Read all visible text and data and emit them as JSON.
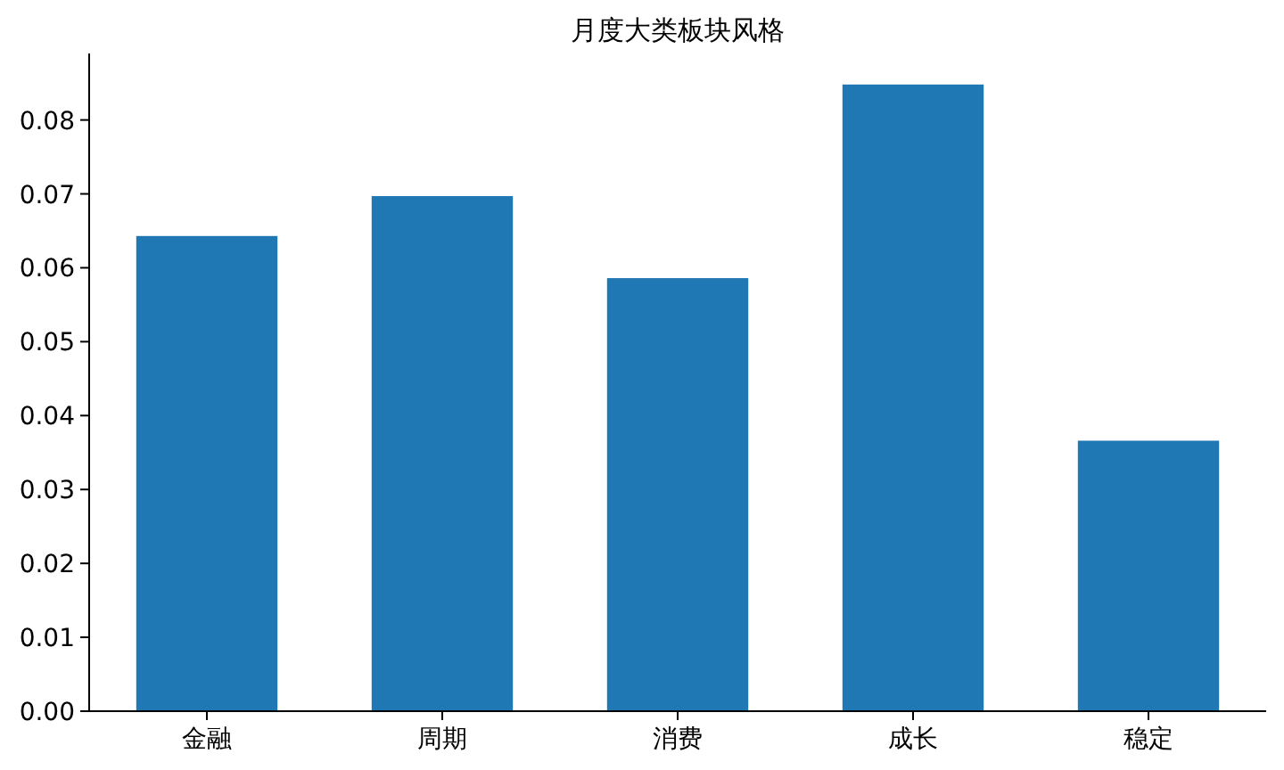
{
  "chart_data": {
    "type": "bar",
    "title": "月度大类板块风格",
    "categories": [
      "金融",
      "周期",
      "消费",
      "成长",
      "稳定"
    ],
    "values": [
      0.0643,
      0.0697,
      0.0586,
      0.0848,
      0.0366
    ],
    "color": "#1f77b4",
    "ylim": [
      0,
      0.089
    ],
    "yticks": [
      {
        "value": 0,
        "label": "0.00"
      },
      {
        "value": 0.01,
        "label": "0.01"
      },
      {
        "value": 0.02,
        "label": "0.02"
      },
      {
        "value": 0.03,
        "label": "0.03"
      },
      {
        "value": 0.04,
        "label": "0.04"
      },
      {
        "value": 0.05,
        "label": "0.05"
      },
      {
        "value": 0.06,
        "label": "0.06"
      },
      {
        "value": 0.07,
        "label": "0.07"
      },
      {
        "value": 0.08,
        "label": "0.08"
      }
    ]
  }
}
